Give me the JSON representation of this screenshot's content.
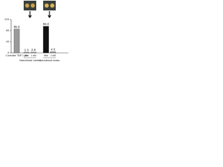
{
  "chart_data": {
    "type": "bar",
    "categories": [
      "Controller TBP 1 μm",
      "Wnt",
      "1 nM",
      "Wnt",
      "1 nM"
    ],
    "values": [
      86.0,
      2.3,
      2.8,
      96.0,
      4.0
    ],
    "value_labels": [
      "86.0",
      "2.3",
      "2.8",
      "96.0",
      "4.0"
    ],
    "colors": [
      "#9a9a9a",
      "#9a9a9a",
      "#9a9a9a",
      "#111111",
      "#9a9a9a"
    ],
    "groups": [
      {
        "name": "Nanobead varies",
        "from": 1,
        "to": 2
      },
      {
        "name": "Nanobead mass",
        "from": 3,
        "to": 4
      }
    ],
    "ylim": [
      0,
      120
    ],
    "yticks": [
      0,
      40,
      80,
      120
    ]
  }
}
